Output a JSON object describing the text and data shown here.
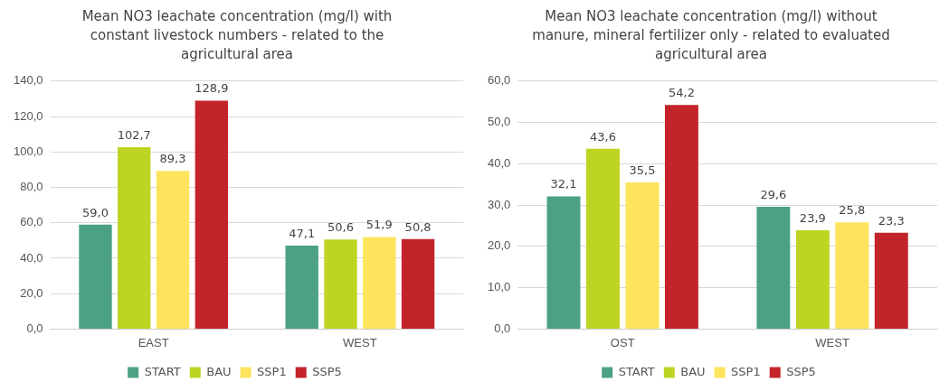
{
  "chart_data": [
    {
      "type": "bar",
      "title": "Mean NO3 leachate concentration (mg/l) with constant livestock numbers - related to the agricultural area",
      "categories": [
        "EAST",
        "WEST"
      ],
      "series": [
        {
          "name": "START",
          "color": "#4ca185",
          "values": [
            59.0,
            47.1
          ],
          "value_labels": [
            "59,0",
            "47,1"
          ]
        },
        {
          "name": "BAU",
          "color": "#bed422",
          "values": [
            102.7,
            50.6
          ],
          "value_labels": [
            "102,7",
            "50,6"
          ]
        },
        {
          "name": "SSP1",
          "color": "#fde45c",
          "values": [
            89.3,
            51.9
          ],
          "value_labels": [
            "89,3",
            "51,9"
          ]
        },
        {
          "name": "SSP5",
          "color": "#c3242a",
          "values": [
            128.9,
            50.8
          ],
          "value_labels": [
            "128,9",
            "50,8"
          ]
        }
      ],
      "ylim": [
        0,
        140
      ],
      "yticks": [
        {
          "value": 0,
          "label": "0,0"
        },
        {
          "value": 20,
          "label": "20,0"
        },
        {
          "value": 40,
          "label": "40,0"
        },
        {
          "value": 60,
          "label": "60,0"
        },
        {
          "value": 80,
          "label": "80,0"
        },
        {
          "value": 100,
          "label": "100,0"
        },
        {
          "value": 120,
          "label": "120,0"
        },
        {
          "value": 140,
          "label": "140,0"
        }
      ],
      "grid": "y",
      "legend": "bottom"
    },
    {
      "type": "bar",
      "title": "Mean NO3 leachate concentration (mg/l) without manure, mineral fertilizer only - related to evaluated agricultural area",
      "categories": [
        "OST",
        "WEST"
      ],
      "series": [
        {
          "name": "START",
          "color": "#4ca185",
          "values": [
            32.1,
            29.6
          ],
          "value_labels": [
            "32,1",
            "29,6"
          ]
        },
        {
          "name": "BAU",
          "color": "#bed422",
          "values": [
            43.6,
            23.9
          ],
          "value_labels": [
            "43,6",
            "23,9"
          ]
        },
        {
          "name": "SSP1",
          "color": "#fde45c",
          "values": [
            35.5,
            25.8
          ],
          "value_labels": [
            "35,5",
            "25,8"
          ]
        },
        {
          "name": "SSP5",
          "color": "#c3242a",
          "values": [
            54.2,
            23.3
          ],
          "value_labels": [
            "54,2",
            "23,3"
          ]
        }
      ],
      "ylim": [
        0,
        60
      ],
      "yticks": [
        {
          "value": 0,
          "label": "0,0"
        },
        {
          "value": 10,
          "label": "10,0"
        },
        {
          "value": 20,
          "label": "20,0"
        },
        {
          "value": 30,
          "label": "30,0"
        },
        {
          "value": 40,
          "label": "40,0"
        },
        {
          "value": 50,
          "label": "50,0"
        },
        {
          "value": 60,
          "label": "60,0"
        }
      ],
      "grid": "y",
      "legend": "bottom"
    }
  ]
}
